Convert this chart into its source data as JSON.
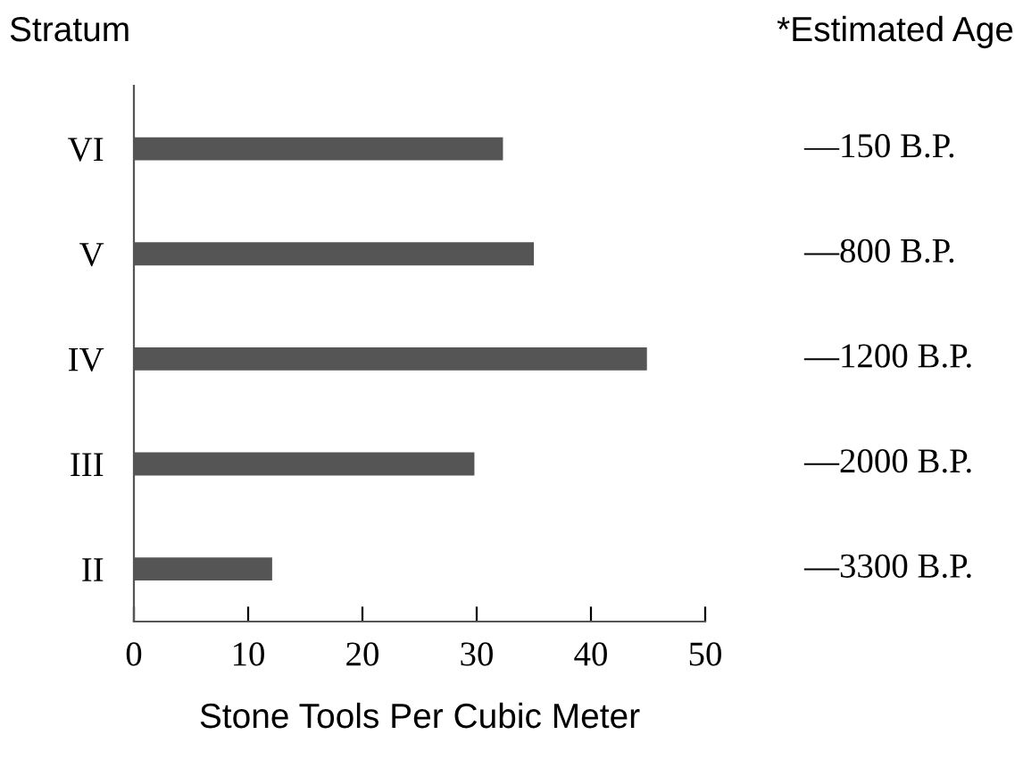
{
  "chart_data": {
    "type": "bar",
    "orientation": "horizontal",
    "ylabel": "Stratum",
    "y2label": "*Estimated Age",
    "xlabel": "Stone Tools Per Cubic Meter",
    "categories": [
      "VI",
      "V",
      "IV",
      "III",
      "II"
    ],
    "values": [
      32.3,
      35,
      44.9,
      29.8,
      12.1
    ],
    "color": "#555555",
    "xlim": [
      0,
      50
    ],
    "xticks": [
      0,
      10,
      20,
      30,
      40,
      50
    ],
    "grid": false,
    "annotations": [
      "—150 B.P.",
      "—800 B.P.",
      "—1200 B.P.",
      "—2000 B.P.",
      "—3300 B.P."
    ]
  }
}
